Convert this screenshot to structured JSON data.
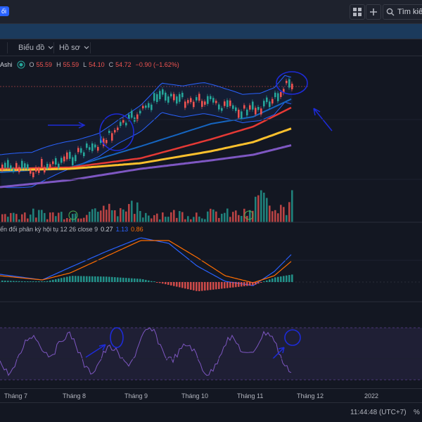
{
  "topbar": {
    "badge": "ối",
    "search_placeholder": "Tìm kiếm"
  },
  "toolbar": {
    "chart_menu": "Biểu đồ",
    "profile_menu": "Hồ sơ"
  },
  "legend": {
    "chart_type": "Ashi",
    "open_label": "O",
    "open": "55.59",
    "high_label": "H",
    "high": "55.59",
    "low_label": "L",
    "low": "54.10",
    "close_label": "C",
    "close": "54.72",
    "change": "−0.90 (−1.62%)"
  },
  "macd": {
    "title": "ển đổi phân kỳ hội tụ 12 26 close 9",
    "v1": "0.27",
    "v2": "1.13",
    "v3": "0.86"
  },
  "x_axis": {
    "labels": [
      "Tháng 7",
      "Tháng 8",
      "Tháng 9",
      "Tháng 10",
      "Tháng 11",
      "Tháng 12",
      "2022"
    ]
  },
  "status": {
    "time": "11:44:48 (UTC+7)",
    "percent": "%"
  },
  "colors": {
    "up": "#26a69a",
    "down": "#ef5350",
    "macd_line": "#2962ff",
    "signal_line": "#ff6d00",
    "ema_red": "#e53935",
    "ema_yellow": "#fbc02d",
    "ema_purple": "#7e57c2",
    "annotation": "#1d2bd8"
  }
}
